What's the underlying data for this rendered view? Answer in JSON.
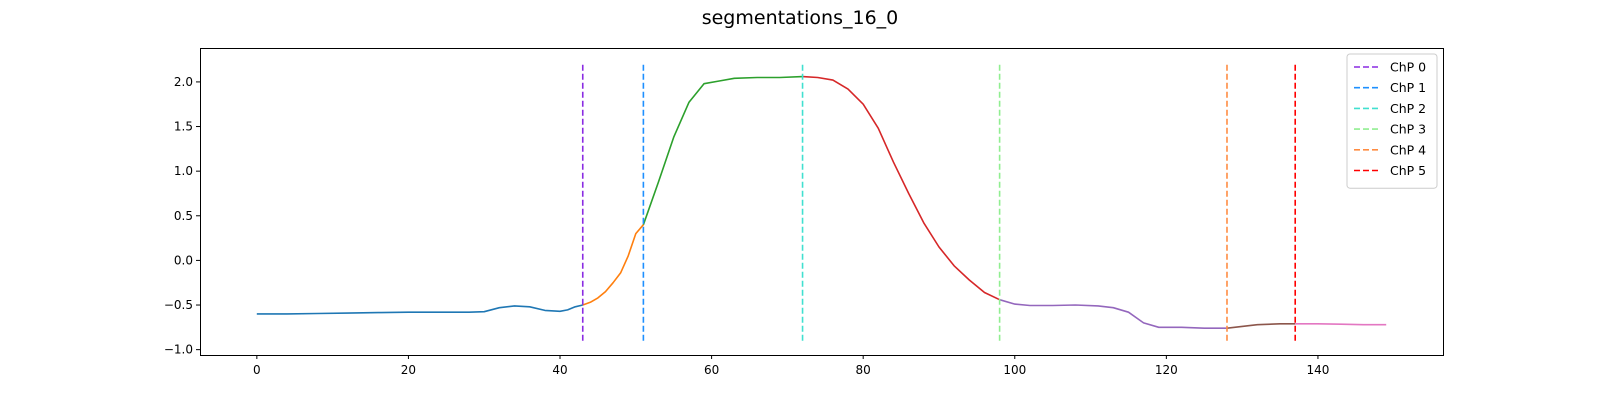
{
  "chart_data": {
    "type": "line",
    "title": "segmentations_16_0",
    "xlabel": "",
    "ylabel": "",
    "xlim": [
      -7.5,
      156.5
    ],
    "ylim": [
      -1.06,
      2.38
    ],
    "xticks": [
      0,
      20,
      40,
      60,
      80,
      100,
      120,
      140
    ],
    "yticks": [
      -1.0,
      -0.5,
      0.0,
      0.5,
      1.0,
      1.5,
      2.0
    ],
    "xtick_labels": [
      "0",
      "20",
      "40",
      "60",
      "80",
      "100",
      "120",
      "140"
    ],
    "ytick_labels": [
      "−1.0",
      "−0.5",
      "0.0",
      "0.5",
      "1.0",
      "1.5",
      "2.0"
    ],
    "grid": false,
    "legend_position": "top-right",
    "segments": [
      {
        "color": "#1f77b4",
        "points": [
          [
            0,
            -0.6
          ],
          [
            4,
            -0.6
          ],
          [
            8,
            -0.595
          ],
          [
            12,
            -0.59
          ],
          [
            16,
            -0.585
          ],
          [
            20,
            -0.58
          ],
          [
            24,
            -0.58
          ],
          [
            28,
            -0.58
          ],
          [
            30,
            -0.575
          ],
          [
            32,
            -0.53
          ],
          [
            34,
            -0.51
          ],
          [
            36,
            -0.52
          ],
          [
            38,
            -0.56
          ],
          [
            40,
            -0.57
          ],
          [
            41,
            -0.555
          ],
          [
            42,
            -0.52
          ],
          [
            43,
            -0.5
          ]
        ]
      },
      {
        "color": "#ff7f0e",
        "points": [
          [
            43,
            -0.5
          ],
          [
            44,
            -0.47
          ],
          [
            45,
            -0.42
          ],
          [
            46,
            -0.35
          ],
          [
            47,
            -0.25
          ],
          [
            48,
            -0.14
          ],
          [
            49,
            0.05
          ],
          [
            50,
            0.3
          ],
          [
            51,
            0.4
          ]
        ]
      },
      {
        "color": "#2ca02c",
        "points": [
          [
            51,
            0.4
          ],
          [
            53,
            0.88
          ],
          [
            55,
            1.38
          ],
          [
            57,
            1.77
          ],
          [
            59,
            1.98
          ],
          [
            61,
            2.01
          ],
          [
            63,
            2.04
          ],
          [
            66,
            2.05
          ],
          [
            69,
            2.05
          ],
          [
            72,
            2.06
          ]
        ]
      },
      {
        "color": "#d62728",
        "points": [
          [
            72,
            2.06
          ],
          [
            74,
            2.05
          ],
          [
            76,
            2.02
          ],
          [
            78,
            1.92
          ],
          [
            80,
            1.75
          ],
          [
            82,
            1.48
          ],
          [
            84,
            1.1
          ],
          [
            86,
            0.75
          ],
          [
            88,
            0.42
          ],
          [
            90,
            0.15
          ],
          [
            92,
            -0.06
          ],
          [
            94,
            -0.22
          ],
          [
            96,
            -0.36
          ],
          [
            98,
            -0.44
          ]
        ]
      },
      {
        "color": "#9467bd",
        "points": [
          [
            98,
            -0.44
          ],
          [
            100,
            -0.49
          ],
          [
            102,
            -0.505
          ],
          [
            105,
            -0.505
          ],
          [
            108,
            -0.5
          ],
          [
            111,
            -0.51
          ],
          [
            113,
            -0.53
          ],
          [
            115,
            -0.58
          ],
          [
            117,
            -0.7
          ],
          [
            119,
            -0.75
          ],
          [
            122,
            -0.75
          ],
          [
            125,
            -0.76
          ],
          [
            128,
            -0.76
          ]
        ]
      },
      {
        "color": "#8c564b",
        "points": [
          [
            128,
            -0.76
          ],
          [
            130,
            -0.74
          ],
          [
            132,
            -0.72
          ],
          [
            135,
            -0.71
          ],
          [
            137,
            -0.71
          ]
        ]
      },
      {
        "color": "#e377c2",
        "points": [
          [
            137,
            -0.71
          ],
          [
            140,
            -0.71
          ],
          [
            143,
            -0.715
          ],
          [
            146,
            -0.72
          ],
          [
            149,
            -0.72
          ]
        ]
      }
    ],
    "changepoints": [
      {
        "name": "ChP 0",
        "x": 43,
        "color": "#8a2be2"
      },
      {
        "name": "ChP 1",
        "x": 51,
        "color": "#1e90ff"
      },
      {
        "name": "ChP 2",
        "x": 72,
        "color": "#40e0d0"
      },
      {
        "name": "ChP 3",
        "x": 98,
        "color": "#90ee90"
      },
      {
        "name": "ChP 4",
        "x": 128,
        "color": "#ff8c42"
      },
      {
        "name": "ChP 5",
        "x": 137,
        "color": "#ff0000"
      }
    ],
    "changepoint_yrange": [
      -0.9,
      2.2
    ]
  }
}
